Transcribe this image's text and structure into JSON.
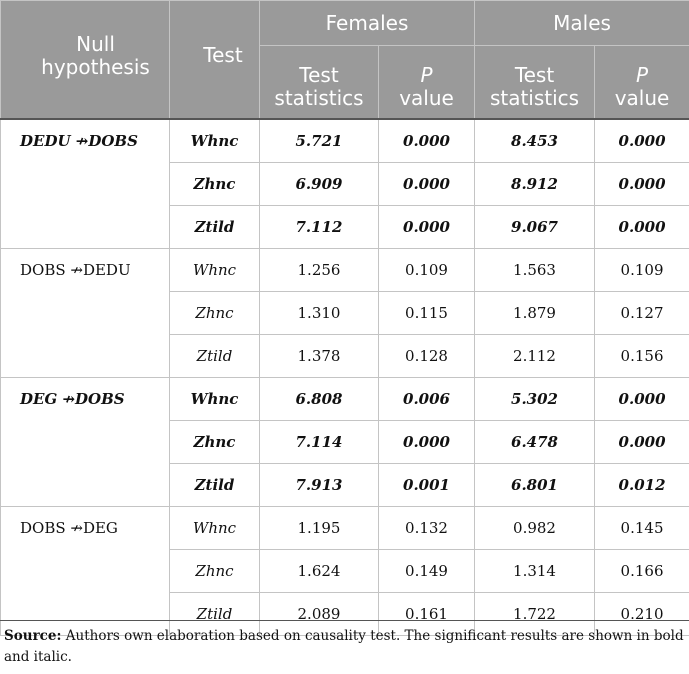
{
  "header": {
    "null_hypothesis": "Null hypothesis",
    "test": "Test",
    "females": "Females",
    "males": "Males",
    "test_statistics": "Test statistics",
    "p_label": "P",
    "value_label": "value"
  },
  "groups": [
    {
      "hypothesis": "DEDU ↛DOBS",
      "significant": true,
      "rows": [
        {
          "test": "Whnc",
          "f_stat": "5.721",
          "f_p": "0.000",
          "m_stat": "8.453",
          "m_p": "0.000"
        },
        {
          "test": "Zhnc",
          "f_stat": "6.909",
          "f_p": "0.000",
          "m_stat": "8.912",
          "m_p": "0.000"
        },
        {
          "test": "Ztild",
          "f_stat": "7.112",
          "f_p": "0.000",
          "m_stat": "9.067",
          "m_p": "0.000"
        }
      ]
    },
    {
      "hypothesis": "DOBS ↛DEDU",
      "significant": false,
      "rows": [
        {
          "test": "Whnc",
          "f_stat": "1.256",
          "f_p": "0.109",
          "m_stat": "1.563",
          "m_p": "0.109"
        },
        {
          "test": "Zhnc",
          "f_stat": "1.310",
          "f_p": "0.115",
          "m_stat": "1.879",
          "m_p": "0.127"
        },
        {
          "test": "Ztild",
          "f_stat": "1.378",
          "f_p": "0.128",
          "m_stat": "2.112",
          "m_p": "0.156"
        }
      ]
    },
    {
      "hypothesis": "DEG ↛DOBS",
      "significant": true,
      "rows": [
        {
          "test": "Whnc",
          "f_stat": "6.808",
          "f_p": "0.006",
          "m_stat": "5.302",
          "m_p": "0.000"
        },
        {
          "test": "Zhnc",
          "f_stat": "7.114",
          "f_p": "0.000",
          "m_stat": "6.478",
          "m_p": "0.000"
        },
        {
          "test": "Ztild",
          "f_stat": "7.913",
          "f_p": "0.001",
          "m_stat": "6.801",
          "m_p": "0.012"
        }
      ]
    },
    {
      "hypothesis": "DOBS ↛DEG",
      "significant": false,
      "rows": [
        {
          "test": "Whnc",
          "f_stat": "1.195",
          "f_p": "0.132",
          "m_stat": "0.982",
          "m_p": "0.145"
        },
        {
          "test": "Zhnc",
          "f_stat": "1.624",
          "f_p": "0.149",
          "m_stat": "1.314",
          "m_p": "0.166"
        },
        {
          "test": "Ztild",
          "f_stat": "2.089",
          "f_p": "0.161",
          "m_stat": "1.722",
          "m_p": "0.210"
        }
      ]
    }
  ],
  "note": {
    "label": "Source:",
    "text": " Authors own elaboration based on causality test. The significant results are shown in bold and italic."
  }
}
